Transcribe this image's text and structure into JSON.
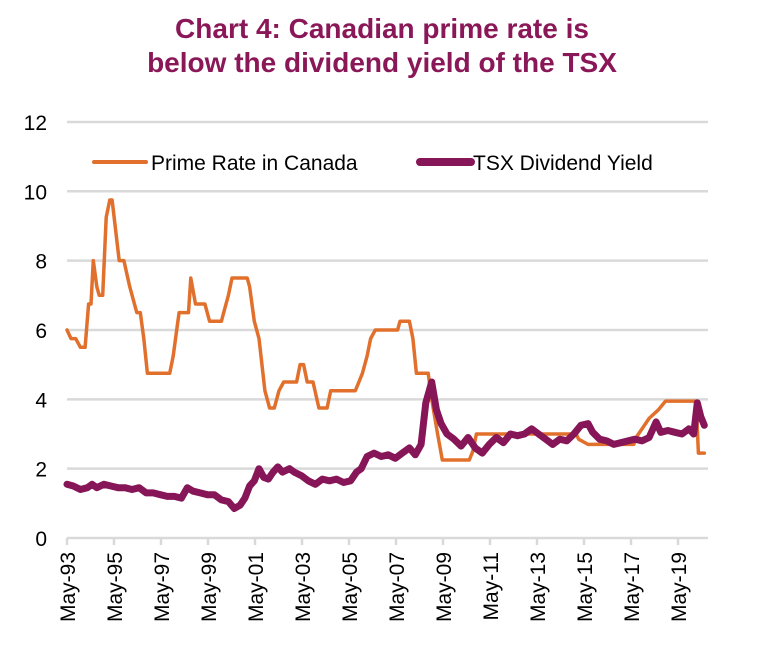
{
  "chart_data": {
    "type": "line",
    "title": "Chart 4: Canadian prime rate is below the dividend yield of the TSX",
    "title_lines": [
      "Chart 4: Canadian prime rate is",
      "below the dividend yield of the TSX"
    ],
    "xlabel": "",
    "ylabel": "",
    "ylim": [
      0,
      12
    ],
    "yticks": [
      0,
      2,
      4,
      6,
      8,
      10,
      12
    ],
    "ytick_labels": [
      "0",
      "2",
      "4",
      "6",
      "8",
      "10",
      "12"
    ],
    "xlim": [
      1993.33,
      2020.5
    ],
    "xticks": [
      1993.33,
      1995.33,
      1997.33,
      1999.33,
      2001.33,
      2003.33,
      2005.33,
      2007.33,
      2009.33,
      2011.33,
      2013.33,
      2015.33,
      2017.33,
      2019.33
    ],
    "xtick_labels": [
      "May-93",
      "May-95",
      "May-97",
      "May-99",
      "May-01",
      "May-03",
      "May-05",
      "May-07",
      "May-09",
      "May-11",
      "May-13",
      "May-15",
      "May-17",
      "May-19"
    ],
    "grid": "horizontal",
    "legend_position": "top",
    "series": [
      {
        "name": "Prime Rate in Canada",
        "color": "#e2702d",
        "x": [
          1993.33,
          1993.5,
          1993.7,
          1993.9,
          1994.1,
          1994.25,
          1994.35,
          1994.45,
          1994.6,
          1994.7,
          1994.85,
          1995.0,
          1995.15,
          1995.25,
          1995.55,
          1995.75,
          1996.0,
          1996.3,
          1996.45,
          1996.6,
          1996.75,
          1997.7,
          1997.85,
          1998.0,
          1998.1,
          1998.5,
          1998.6,
          1998.8,
          1999.2,
          1999.4,
          1999.9,
          2000.0,
          2000.2,
          2000.35,
          2001.0,
          2001.1,
          2001.3,
          2001.5,
          2001.75,
          2001.95,
          2002.15,
          2002.35,
          2002.55,
          2003.1,
          2003.25,
          2003.4,
          2003.55,
          2003.8,
          2004.05,
          2004.4,
          2004.55,
          2005.6,
          2005.75,
          2005.9,
          2006.1,
          2006.25,
          2006.45,
          2007.4,
          2007.5,
          2007.9,
          2008.05,
          2008.2,
          2008.7,
          2008.85,
          2009.1,
          2009.3,
          2010.45,
          2010.6,
          2010.75,
          2015.0,
          2015.1,
          2015.5,
          2017.45,
          2017.6,
          2017.85,
          2018.1,
          2018.5,
          2018.8,
          2020.1,
          2020.2,
          2020.45
        ],
        "values": [
          6.0,
          5.75,
          5.75,
          5.5,
          5.5,
          6.75,
          6.75,
          8.0,
          7.25,
          7.0,
          7.0,
          9.25,
          9.75,
          9.75,
          8.0,
          8.0,
          7.25,
          6.5,
          6.5,
          5.75,
          4.75,
          4.75,
          5.25,
          6.0,
          6.5,
          6.5,
          7.5,
          6.75,
          6.75,
          6.25,
          6.25,
          6.5,
          7.0,
          7.5,
          7.5,
          7.25,
          6.25,
          5.75,
          4.25,
          3.75,
          3.75,
          4.25,
          4.5,
          4.5,
          5.0,
          5.0,
          4.5,
          4.5,
          3.75,
          3.75,
          4.25,
          4.25,
          4.5,
          4.75,
          5.25,
          5.75,
          6.0,
          6.0,
          6.25,
          6.25,
          5.75,
          4.75,
          4.75,
          4.0,
          3.0,
          2.25,
          2.25,
          2.5,
          3.0,
          3.0,
          2.85,
          2.7,
          2.7,
          2.95,
          3.2,
          3.45,
          3.7,
          3.95,
          3.95,
          2.45,
          2.45
        ]
      },
      {
        "name": "TSX Dividend Yield",
        "color": "#861657",
        "x": [
          1993.33,
          1993.6,
          1993.9,
          1994.2,
          1994.4,
          1994.6,
          1994.9,
          1995.2,
          1995.5,
          1995.8,
          1996.1,
          1996.4,
          1996.7,
          1997.0,
          1997.3,
          1997.6,
          1997.9,
          1998.2,
          1998.45,
          1998.7,
          1999.0,
          1999.3,
          1999.6,
          1999.9,
          2000.2,
          2000.45,
          2000.7,
          2000.9,
          2001.1,
          2001.3,
          2001.5,
          2001.7,
          2001.9,
          2002.1,
          2002.3,
          2002.5,
          2002.8,
          2003.0,
          2003.3,
          2003.6,
          2003.9,
          2004.2,
          2004.5,
          2004.8,
          2005.1,
          2005.4,
          2005.65,
          2005.85,
          2006.1,
          2006.4,
          2006.7,
          2007.0,
          2007.3,
          2007.6,
          2007.9,
          2008.15,
          2008.4,
          2008.6,
          2008.85,
          2009.05,
          2009.25,
          2009.5,
          2009.8,
          2010.1,
          2010.4,
          2010.7,
          2011.0,
          2011.3,
          2011.6,
          2011.9,
          2012.2,
          2012.5,
          2012.8,
          2013.1,
          2013.4,
          2013.7,
          2014.0,
          2014.3,
          2014.6,
          2014.9,
          2015.2,
          2015.5,
          2015.7,
          2016.0,
          2016.3,
          2016.6,
          2016.9,
          2017.2,
          2017.5,
          2017.8,
          2018.1,
          2018.4,
          2018.6,
          2018.9,
          2019.2,
          2019.5,
          2019.8,
          2020.0,
          2020.15,
          2020.3,
          2020.45
        ],
        "values": [
          1.55,
          1.5,
          1.4,
          1.45,
          1.55,
          1.45,
          1.55,
          1.5,
          1.45,
          1.45,
          1.4,
          1.45,
          1.3,
          1.3,
          1.25,
          1.2,
          1.2,
          1.15,
          1.45,
          1.35,
          1.3,
          1.25,
          1.25,
          1.1,
          1.05,
          0.85,
          0.95,
          1.15,
          1.5,
          1.65,
          2.0,
          1.75,
          1.7,
          1.9,
          2.05,
          1.9,
          2.0,
          1.9,
          1.8,
          1.65,
          1.55,
          1.7,
          1.65,
          1.7,
          1.6,
          1.65,
          1.9,
          2.0,
          2.35,
          2.45,
          2.35,
          2.4,
          2.3,
          2.45,
          2.6,
          2.4,
          2.7,
          3.9,
          4.5,
          3.7,
          3.3,
          3.0,
          2.85,
          2.65,
          2.9,
          2.6,
          2.45,
          2.7,
          2.9,
          2.75,
          3.0,
          2.95,
          3.0,
          3.15,
          3.0,
          2.85,
          2.7,
          2.85,
          2.8,
          3.0,
          3.25,
          3.3,
          3.05,
          2.85,
          2.8,
          2.7,
          2.75,
          2.8,
          2.85,
          2.8,
          2.9,
          3.35,
          3.05,
          3.1,
          3.05,
          3.0,
          3.15,
          3.0,
          3.9,
          3.5,
          3.25
        ]
      }
    ]
  }
}
